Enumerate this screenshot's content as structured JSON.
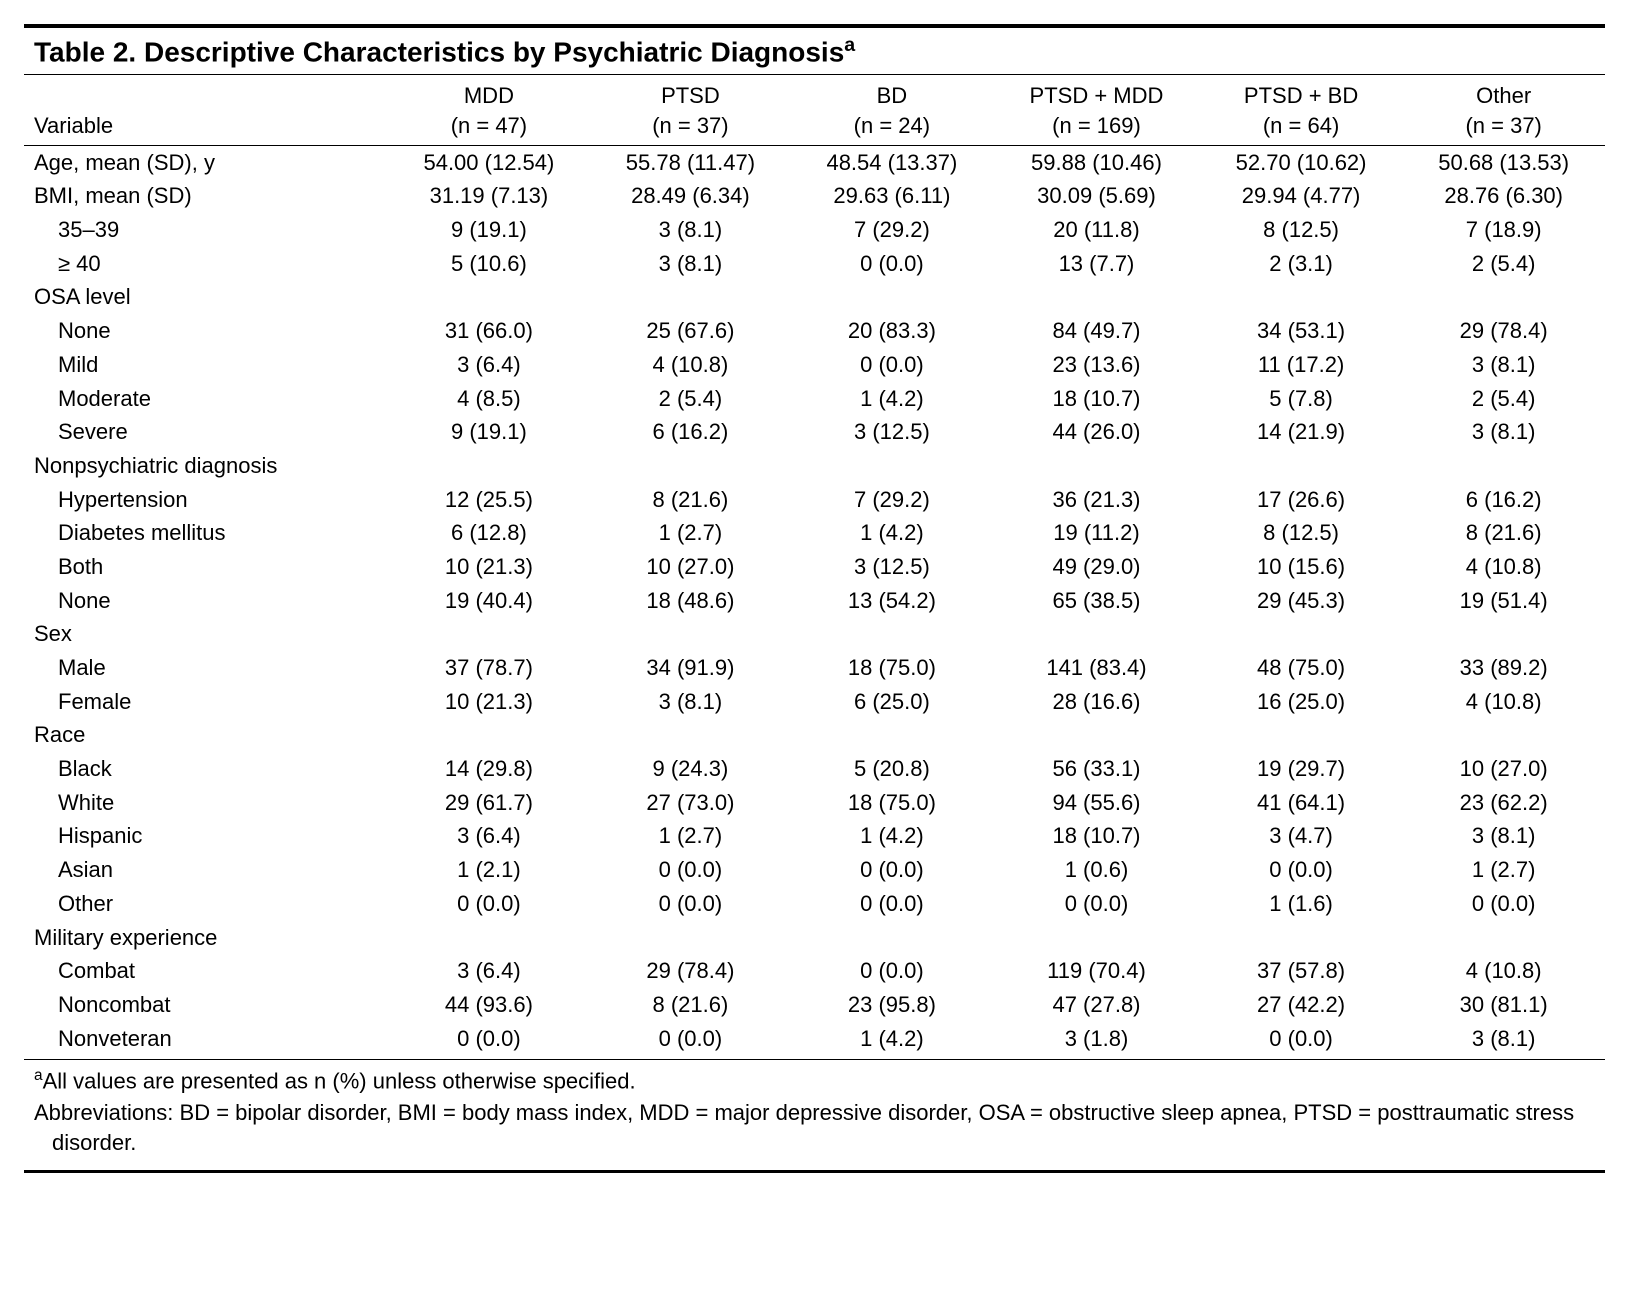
{
  "title_prefix": "Table 2. ",
  "title_main": "Descriptive Characteristics by Psychiatric Diagnosis",
  "title_sup": "a",
  "header_variable": "Variable",
  "groups": [
    {
      "label": "MDD",
      "n": "(n = 47)"
    },
    {
      "label": "PTSD",
      "n": "(n = 37)"
    },
    {
      "label": "BD",
      "n": "(n = 24)"
    },
    {
      "label": "PTSD + MDD",
      "n": "(n = 169)"
    },
    {
      "label": "PTSD + BD",
      "n": "(n = 64)"
    },
    {
      "label": "Other",
      "n": "(n = 37)"
    }
  ],
  "rows": [
    {
      "type": "data",
      "label": "Age, mean (SD), y",
      "v": [
        "54.00 (12.54)",
        "55.78 (11.47)",
        "48.54 (13.37)",
        "59.88 (10.46)",
        "52.70 (10.62)",
        "50.68 (13.53)"
      ]
    },
    {
      "type": "data",
      "label": "BMI, mean (SD)",
      "v": [
        "31.19 (7.13)",
        "28.49 (6.34)",
        "29.63 (6.11)",
        "30.09 (5.69)",
        "29.94 (4.77)",
        "28.76 (6.30)"
      ]
    },
    {
      "type": "sub",
      "label": "35–39",
      "v": [
        "9 (19.1)",
        "3 (8.1)",
        "7 (29.2)",
        "20 (11.8)",
        "8 (12.5)",
        "7 (18.9)"
      ]
    },
    {
      "type": "sub",
      "label": "≥ 40",
      "v": [
        "5 (10.6)",
        "3 (8.1)",
        "0 (0.0)",
        "13 (7.7)",
        "2 (3.1)",
        "2 (5.4)"
      ]
    },
    {
      "type": "section",
      "label": "OSA level"
    },
    {
      "type": "sub",
      "label": "None",
      "v": [
        "31 (66.0)",
        "25 (67.6)",
        "20 (83.3)",
        "84 (49.7)",
        "34 (53.1)",
        "29 (78.4)"
      ]
    },
    {
      "type": "sub",
      "label": "Mild",
      "v": [
        "3 (6.4)",
        "4 (10.8)",
        "0 (0.0)",
        "23 (13.6)",
        "11 (17.2)",
        "3 (8.1)"
      ]
    },
    {
      "type": "sub",
      "label": "Moderate",
      "v": [
        "4 (8.5)",
        "2 (5.4)",
        "1 (4.2)",
        "18 (10.7)",
        "5 (7.8)",
        "2 (5.4)"
      ]
    },
    {
      "type": "sub",
      "label": "Severe",
      "v": [
        "9 (19.1)",
        "6 (16.2)",
        "3 (12.5)",
        "44 (26.0)",
        "14 (21.9)",
        "3 (8.1)"
      ]
    },
    {
      "type": "section",
      "label": "Nonpsychiatric diagnosis"
    },
    {
      "type": "sub",
      "label": "Hypertension",
      "v": [
        "12 (25.5)",
        "8 (21.6)",
        "7 (29.2)",
        "36 (21.3)",
        "17 (26.6)",
        "6 (16.2)"
      ]
    },
    {
      "type": "sub",
      "label": "Diabetes mellitus",
      "v": [
        "6 (12.8)",
        "1 (2.7)",
        "1 (4.2)",
        "19 (11.2)",
        "8 (12.5)",
        "8 (21.6)"
      ]
    },
    {
      "type": "sub",
      "label": "Both",
      "v": [
        "10 (21.3)",
        "10 (27.0)",
        "3 (12.5)",
        "49 (29.0)",
        "10 (15.6)",
        "4 (10.8)"
      ]
    },
    {
      "type": "sub",
      "label": "None",
      "v": [
        "19 (40.4)",
        "18 (48.6)",
        "13 (54.2)",
        "65 (38.5)",
        "29 (45.3)",
        "19 (51.4)"
      ]
    },
    {
      "type": "section",
      "label": "Sex"
    },
    {
      "type": "sub",
      "label": "Male",
      "v": [
        "37 (78.7)",
        "34 (91.9)",
        "18 (75.0)",
        "141 (83.4)",
        "48 (75.0)",
        "33 (89.2)"
      ]
    },
    {
      "type": "sub",
      "label": "Female",
      "v": [
        "10 (21.3)",
        "3 (8.1)",
        "6 (25.0)",
        "28 (16.6)",
        "16 (25.0)",
        "4 (10.8)"
      ]
    },
    {
      "type": "section",
      "label": "Race"
    },
    {
      "type": "sub",
      "label": "Black",
      "v": [
        "14 (29.8)",
        "9 (24.3)",
        "5 (20.8)",
        "56 (33.1)",
        "19 (29.7)",
        "10 (27.0)"
      ]
    },
    {
      "type": "sub",
      "label": "White",
      "v": [
        "29 (61.7)",
        "27 (73.0)",
        "18 (75.0)",
        "94 (55.6)",
        "41 (64.1)",
        "23 (62.2)"
      ]
    },
    {
      "type": "sub",
      "label": "Hispanic",
      "v": [
        "3 (6.4)",
        "1 (2.7)",
        "1 (4.2)",
        "18 (10.7)",
        "3 (4.7)",
        "3 (8.1)"
      ]
    },
    {
      "type": "sub",
      "label": "Asian",
      "v": [
        "1 (2.1)",
        "0 (0.0)",
        "0 (0.0)",
        "1 (0.6)",
        "0 (0.0)",
        "1 (2.7)"
      ]
    },
    {
      "type": "sub",
      "label": "Other",
      "v": [
        "0 (0.0)",
        "0 (0.0)",
        "0 (0.0)",
        "0 (0.0)",
        "1 (1.6)",
        "0 (0.0)"
      ]
    },
    {
      "type": "section",
      "label": "Military experience"
    },
    {
      "type": "sub",
      "label": "Combat",
      "v": [
        "3 (6.4)",
        "29 (78.4)",
        "0 (0.0)",
        "119 (70.4)",
        "37 (57.8)",
        "4 (10.8)"
      ]
    },
    {
      "type": "sub",
      "label": "Noncombat",
      "v": [
        "44 (93.6)",
        "8 (21.6)",
        "23 (95.8)",
        "47 (27.8)",
        "27 (42.2)",
        "30 (81.1)"
      ]
    },
    {
      "type": "sub",
      "label": "Nonveteran",
      "v": [
        "0 (0.0)",
        "0 (0.0)",
        "1 (4.2)",
        "3 (1.8)",
        "0 (0.0)",
        "3 (8.1)"
      ]
    }
  ],
  "footnote_a_sup": "a",
  "footnote_a": "All values are presented as n (%) unless otherwise specified.",
  "abbreviations": "Abbreviations: BD = bipolar disorder, BMI = body mass index, MDD = major depressive disorder, OSA = obstructive sleep apnea, PTSD = posttraumatic stress disorder."
}
